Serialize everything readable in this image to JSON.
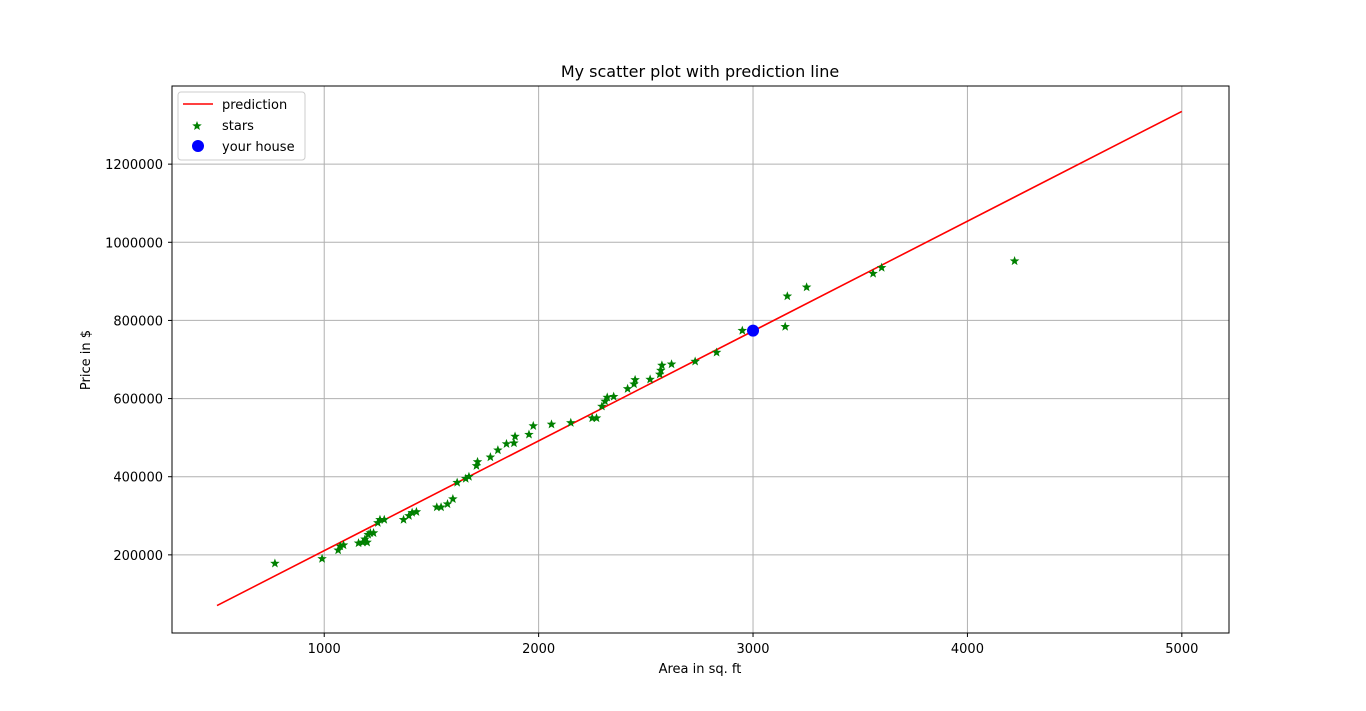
{
  "chart_data": {
    "type": "scatter",
    "title": "My scatter plot with prediction line",
    "xlabel": "Area in sq. ft",
    "ylabel": "Price in $",
    "xlim": [
      290,
      5220
    ],
    "ylim": [
      0,
      1400000
    ],
    "xticks": [
      1000,
      2000,
      3000,
      4000,
      5000
    ],
    "yticks": [
      200000,
      400000,
      600000,
      800000,
      1000000,
      1200000
    ],
    "grid": true,
    "legend_position": "top-left",
    "colors": {
      "prediction": "#ff0000",
      "stars": "#008000",
      "house": "#0000ff"
    },
    "series": [
      {
        "name": "prediction",
        "kind": "line",
        "x": [
          500,
          5000
        ],
        "y": [
          70000,
          1335000
        ]
      },
      {
        "name": "stars",
        "kind": "scatter",
        "marker": "star",
        "x": [
          770,
          990,
          1065,
          1075,
          1090,
          1160,
          1180,
          1190,
          1200,
          1205,
          1215,
          1230,
          1250,
          1260,
          1280,
          1370,
          1395,
          1410,
          1430,
          1525,
          1545,
          1575,
          1600,
          1620,
          1660,
          1675,
          1710,
          1715,
          1775,
          1810,
          1850,
          1885,
          1890,
          1955,
          1975,
          2060,
          2150,
          2250,
          2270,
          2295,
          2310,
          2320,
          2350,
          2415,
          2445,
          2450,
          2520,
          2565,
          2570,
          2575,
          2620,
          2730,
          2830,
          2950,
          3150,
          3160,
          3250,
          3560,
          3600,
          4220
        ],
        "y": [
          178000,
          190000,
          212000,
          222000,
          225000,
          230000,
          232000,
          240000,
          232000,
          252000,
          256000,
          256000,
          282000,
          290000,
          290000,
          290000,
          300000,
          308000,
          310000,
          322000,
          322000,
          330000,
          343000,
          385000,
          395000,
          400000,
          428000,
          438000,
          450000,
          468000,
          484000,
          486000,
          503000,
          508000,
          530000,
          534000,
          538000,
          550000,
          550000,
          580000,
          593000,
          603000,
          605000,
          625000,
          637000,
          648000,
          649000,
          662000,
          672000,
          685000,
          688000,
          695000,
          718000,
          774000,
          784000,
          862000,
          885000,
          920000,
          935000,
          952000
        ]
      },
      {
        "name": "your house",
        "kind": "scatter",
        "marker": "circle",
        "x": [
          3000
        ],
        "y": [
          774000
        ]
      }
    ],
    "tick_labels_x": [
      "1000",
      "2000",
      "3000",
      "4000",
      "5000"
    ],
    "tick_labels_y": [
      "200000",
      "400000",
      "600000",
      "800000",
      "1000000",
      "1200000"
    ]
  }
}
